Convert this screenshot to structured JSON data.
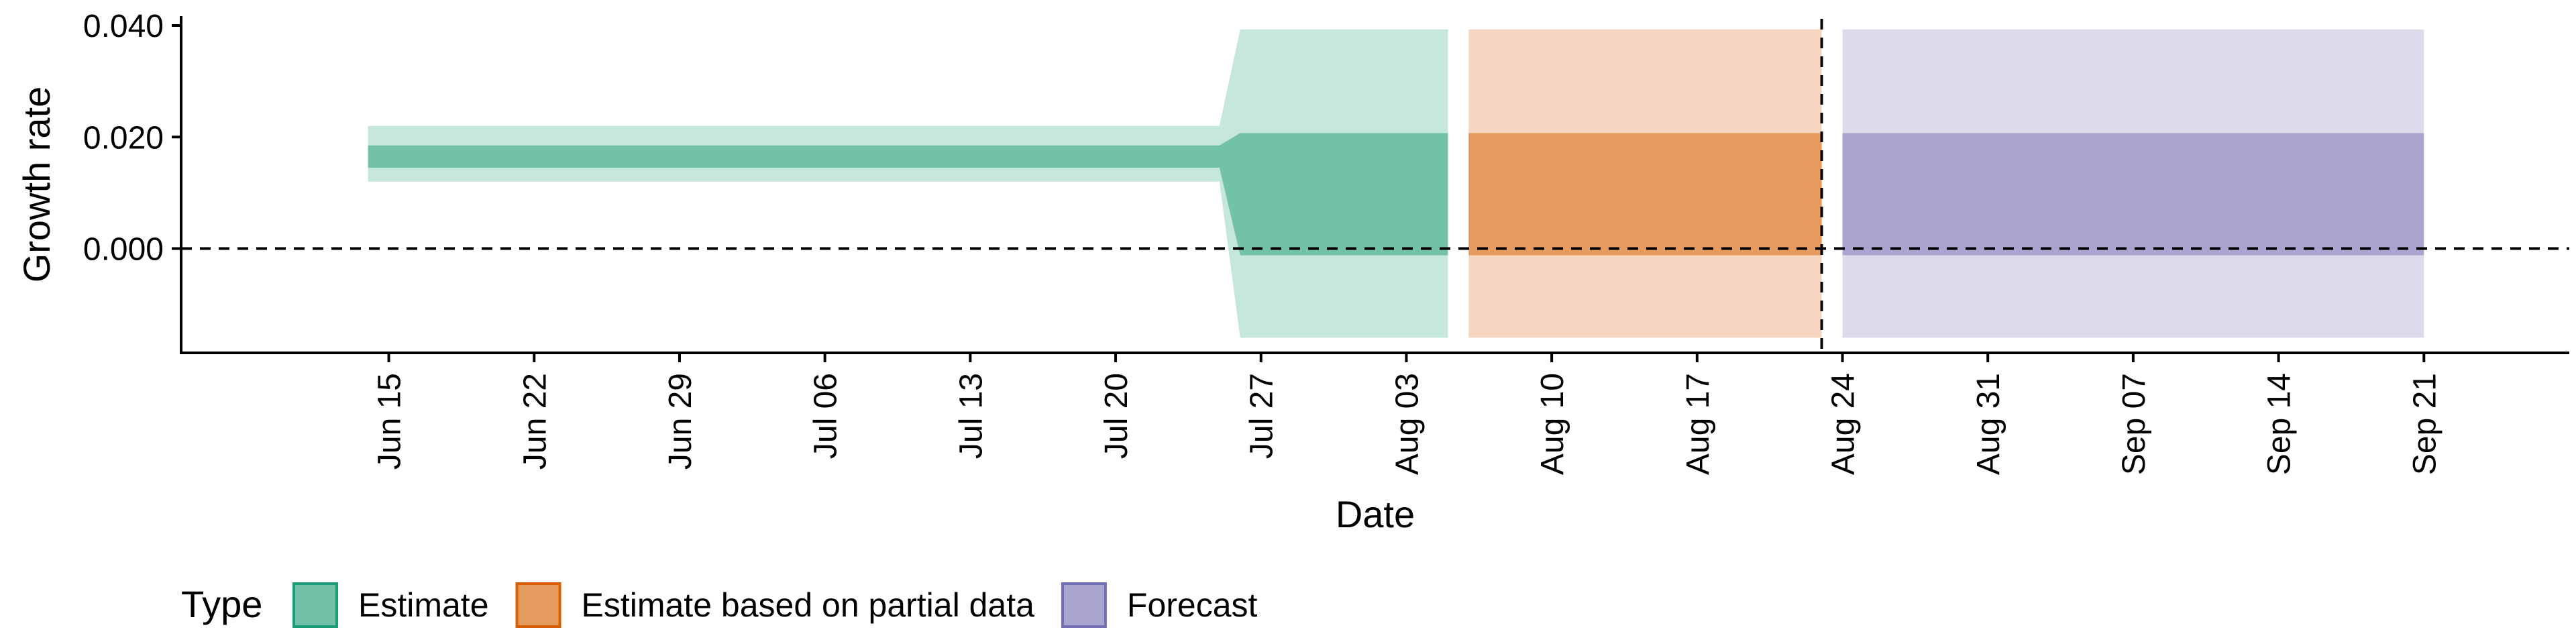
{
  "chart_data": {
    "type": "area",
    "xlabel": "Date",
    "ylabel": "Growth rate",
    "x_axis_type": "date",
    "xlim": [
      "2020-06-05",
      "2020-09-28"
    ],
    "ylim": [
      -0.0187,
      0.0412
    ],
    "y_ticks": [
      {
        "value": 0.0,
        "label": "0.000"
      },
      {
        "value": 0.02,
        "label": "0.020"
      },
      {
        "value": 0.04,
        "label": "0.040"
      }
    ],
    "x_ticks": [
      {
        "date": "2020-06-15",
        "label": "Jun 15"
      },
      {
        "date": "2020-06-22",
        "label": "Jun 22"
      },
      {
        "date": "2020-06-29",
        "label": "Jun 29"
      },
      {
        "date": "2020-07-06",
        "label": "Jul 06"
      },
      {
        "date": "2020-07-13",
        "label": "Jul 13"
      },
      {
        "date": "2020-07-20",
        "label": "Jul 20"
      },
      {
        "date": "2020-07-27",
        "label": "Jul 27"
      },
      {
        "date": "2020-08-03",
        "label": "Aug 03"
      },
      {
        "date": "2020-08-10",
        "label": "Aug 10"
      },
      {
        "date": "2020-08-17",
        "label": "Aug 17"
      },
      {
        "date": "2020-08-24",
        "label": "Aug 24"
      },
      {
        "date": "2020-08-31",
        "label": "Aug 31"
      },
      {
        "date": "2020-09-07",
        "label": "Sep 07"
      },
      {
        "date": "2020-09-14",
        "label": "Sep 14"
      },
      {
        "date": "2020-09-21",
        "label": "Sep 21"
      }
    ],
    "reference_lines": [
      {
        "orientation": "horizontal",
        "y": 0.0,
        "style": "dashed"
      },
      {
        "orientation": "vertical",
        "x": "2020-08-23",
        "style": "dashed"
      }
    ],
    "grid": false,
    "legend": {
      "title": "Type",
      "placement": "bottom-left",
      "entries": [
        {
          "label": "Estimate",
          "fill": "#72c2a9",
          "stroke": "#1b9e77"
        },
        {
          "label": "Estimate based on partial data",
          "fill": "#e69b5e",
          "stroke": "#d95f02"
        },
        {
          "label": "Forecast",
          "fill": "#a9a5d0",
          "stroke": "#7570b3"
        }
      ]
    },
    "series": [
      {
        "type_index": 0,
        "color_outer": "#c5e7dc",
        "color_inner": "#72c2a9",
        "points": [
          {
            "date": "2020-06-14",
            "lower90": 0.012,
            "lower50": 0.0145,
            "upper50": 0.0185,
            "upper90": 0.022
          },
          {
            "date": "2020-07-25",
            "lower90": 0.012,
            "lower50": 0.0145,
            "upper50": 0.0185,
            "upper90": 0.022
          },
          {
            "date": "2020-07-26",
            "lower90": -0.016,
            "lower50": -0.0012,
            "upper50": 0.0207,
            "upper90": 0.0393
          },
          {
            "date": "2020-08-05",
            "lower90": -0.016,
            "lower50": -0.0012,
            "upper50": 0.0207,
            "upper90": 0.0393
          }
        ]
      },
      {
        "type_index": 1,
        "color_outer": "#f6d6c0",
        "color_inner": "#e69b5e",
        "points": [
          {
            "date": "2020-08-06",
            "lower90": -0.016,
            "lower50": -0.0012,
            "upper50": 0.0207,
            "upper90": 0.0393
          },
          {
            "date": "2020-08-23",
            "lower90": -0.016,
            "lower50": -0.0012,
            "upper50": 0.0207,
            "upper90": 0.0393
          }
        ]
      },
      {
        "type_index": 2,
        "color_outer": "#dcdbec",
        "color_inner": "#a9a5d0",
        "points": [
          {
            "date": "2020-08-24",
            "lower90": -0.016,
            "lower50": -0.0012,
            "upper50": 0.0207,
            "upper90": 0.0393
          },
          {
            "date": "2020-09-21",
            "lower90": -0.016,
            "lower50": -0.0012,
            "upper50": 0.0207,
            "upper90": 0.0393
          }
        ]
      }
    ]
  }
}
